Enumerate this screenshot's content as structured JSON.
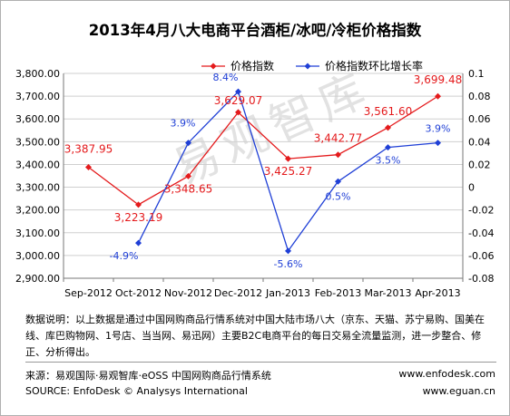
{
  "title": "2013年4月八大电商平台酒柜/冰吧/冷柜价格指数",
  "watermark": "易观智库",
  "note": "数据说明：以上数据是通过中国网购商品行情系统对中国大陆市场八大（京东、天猫、苏宁易购、国美在线、库巴购物网、1号店、当当网、易迅网）主要B2C电商平台的每日交易全流量监测，进一步整合、修正、分析得出。",
  "source_cn": "来源：易观国际·易观智库·eOSS 中国网购商品行情系统",
  "source_en": "SOURCE: EnfoDesk © Analysys International",
  "website1": "www.enfodesk.com",
  "website2": "www.eguan.cn",
  "colors": {
    "index": "#e41a1c",
    "growth": "#1f3fd6",
    "grid": "#cfcfcf"
  },
  "chart_data": {
    "type": "line",
    "categories": [
      "Sep-2012",
      "Oct-2012",
      "Nov-2012",
      "Dec-2012",
      "Jan-2013",
      "Feb-2013",
      "Mar-2013",
      "Apr-2013"
    ],
    "series": [
      {
        "name": "价格指数",
        "axis": "left",
        "values": [
          3387.95,
          3223.19,
          3348.65,
          3629.07,
          3425.27,
          3442.77,
          3561.6,
          3699.48
        ],
        "labels": [
          "3,387.95",
          "3,223.19",
          "3,348.65",
          "3,629.07",
          "3,425.27",
          "3,442.77",
          "3,561.60",
          "3,699.48"
        ]
      },
      {
        "name": "价格指数环比增长率",
        "axis": "right",
        "values": [
          null,
          -0.049,
          0.039,
          0.084,
          -0.056,
          0.005,
          0.035,
          0.039
        ],
        "labels": [
          "",
          "-4.9%",
          "3.9%",
          "8.4%",
          "-5.6%",
          "0.5%",
          "3.5%",
          "3.9%"
        ]
      }
    ],
    "y_left": {
      "min": 2900,
      "max": 3800,
      "ticks": [
        "2,900.00",
        "3,000.00",
        "3,100.00",
        "3,200.00",
        "3,300.00",
        "3,400.00",
        "3,500.00",
        "3,600.00",
        "3,700.00",
        "3,800.00"
      ]
    },
    "y_right": {
      "min": -0.08,
      "max": 0.1,
      "ticks": [
        "-0.08",
        "-0.06",
        "-0.04",
        "-0.02",
        "0",
        "0.02",
        "0.04",
        "0.06",
        "0.08",
        "0.1"
      ]
    },
    "grid": true,
    "legend": "top"
  }
}
